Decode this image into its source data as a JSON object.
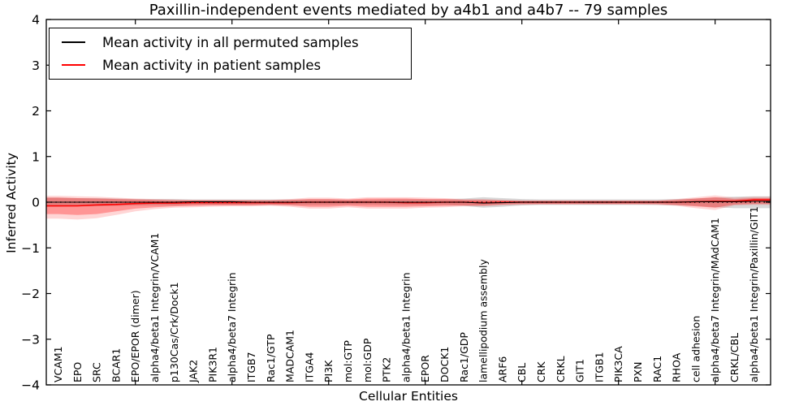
{
  "chart_data": {
    "type": "line",
    "title": "Paxillin-independent events mediated by a4b1 and a4b7 -- 79 samples",
    "xlabel": "Cellular Entities",
    "ylabel": "Inferred Activity",
    "ylim": [
      -4,
      4
    ],
    "yticks": [
      -4,
      -3,
      -2,
      -1,
      0,
      1,
      2,
      3,
      4
    ],
    "grid": false,
    "legend_position": "upper left",
    "zero_line_style": "dotted",
    "sparse_tick_indices": [
      4,
      9,
      14,
      19,
      24,
      29,
      34
    ],
    "categories": [
      "VCAM1",
      "EPO",
      "SRC",
      "BCAR1",
      "EPO/EPOR (dimer)",
      "alpha4/beta1 Integrin/VCAM1",
      "p130Cas/Crk/Dock1",
      "JAK2",
      "PIK3R1",
      "alpha4/beta7 Integrin",
      "ITGB7",
      "Rac1/GTP",
      "MADCAM1",
      "ITGA4",
      "PI3K",
      "mol:GTP",
      "mol:GDP",
      "PTK2",
      "alpha4/beta1 Integrin",
      "EPOR",
      "DOCK1",
      "Rac1/GDP",
      "lamellipodium assembly",
      "ARF6",
      "CBL",
      "CRK",
      "CRKL",
      "GIT1",
      "ITGB1",
      "PIK3CA",
      "PXN",
      "RAC1",
      "RHOA",
      "cell adhesion",
      "alpha4/beta7 Integrin/MAdCAM1",
      "CRKL/CBL",
      "alpha4/beta1 Integrin/Paxillin/GIT1"
    ],
    "series": [
      {
        "name": "Mean activity in all permuted samples",
        "color": "#000000",
        "values": [
          0,
          0,
          0,
          0,
          0,
          0,
          0,
          0.01,
          0.01,
          0.01,
          0,
          0,
          0,
          0,
          0,
          0,
          0,
          0,
          0,
          0,
          0,
          0,
          -0.02,
          -0.01,
          0,
          0,
          0,
          0,
          0,
          0,
          0,
          0,
          0,
          0.01,
          0.01,
          0.01,
          0.02
        ],
        "band": {
          "upper": [
            0.1,
            0.09,
            0.09,
            0.08,
            0.07,
            0.07,
            0.07,
            0.06,
            0.06,
            0.06,
            0.06,
            0.06,
            0.06,
            0.06,
            0.06,
            0.05,
            0.05,
            0.06,
            0.06,
            0.06,
            0.06,
            0.08,
            0.11,
            0.09,
            0.07,
            0.06,
            0.06,
            0.06,
            0.06,
            0.06,
            0.06,
            0.06,
            0.07,
            0.08,
            0.1,
            0.12,
            0.13
          ],
          "lower": [
            -0.1,
            -0.09,
            -0.09,
            -0.08,
            -0.07,
            -0.07,
            -0.07,
            -0.06,
            -0.06,
            -0.06,
            -0.06,
            -0.06,
            -0.06,
            -0.06,
            -0.06,
            -0.05,
            -0.05,
            -0.06,
            -0.06,
            -0.06,
            -0.06,
            -0.08,
            -0.12,
            -0.1,
            -0.07,
            -0.06,
            -0.06,
            -0.06,
            -0.06,
            -0.06,
            -0.06,
            -0.06,
            -0.07,
            -0.08,
            -0.11,
            -0.13,
            -0.13
          ],
          "color": "#999999",
          "opacity": 0.38
        }
      },
      {
        "name": "Mean activity in patient samples",
        "color": "#ff0000",
        "values": [
          -0.08,
          -0.08,
          -0.06,
          -0.05,
          -0.03,
          -0.02,
          -0.02,
          -0.01,
          -0.01,
          -0.01,
          -0.01,
          -0.01,
          -0.01,
          0,
          0,
          0,
          0,
          0,
          -0.01,
          -0.01,
          0,
          0,
          -0.01,
          0,
          0,
          0,
          0,
          0,
          0,
          0,
          0,
          0,
          0,
          0.01,
          0.02,
          0.02,
          0.05
        ],
        "band": {
          "upper": [
            0.1,
            0.09,
            0.08,
            0.07,
            0.06,
            0.05,
            0.04,
            0.04,
            0.04,
            0.04,
            0.04,
            0.04,
            0.05,
            0.07,
            0.07,
            0.06,
            0.08,
            0.08,
            0.08,
            0.07,
            0.07,
            0.05,
            0.05,
            0.04,
            0.03,
            0.03,
            0.03,
            0.03,
            0.03,
            0.03,
            0.03,
            0.03,
            0.05,
            0.08,
            0.11,
            0.07,
            0.09
          ],
          "lower": [
            -0.26,
            -0.28,
            -0.26,
            -0.2,
            -0.14,
            -0.11,
            -0.09,
            -0.08,
            -0.07,
            -0.07,
            -0.07,
            -0.06,
            -0.07,
            -0.1,
            -0.1,
            -0.08,
            -0.1,
            -0.1,
            -0.1,
            -0.09,
            -0.08,
            -0.07,
            -0.07,
            -0.05,
            -0.04,
            -0.04,
            -0.04,
            -0.04,
            -0.04,
            -0.04,
            -0.04,
            -0.04,
            -0.06,
            -0.09,
            -0.12,
            -0.05,
            -0.04
          ],
          "color": "#ff0000",
          "opacity": 0.3
        },
        "band_outer": {
          "upper": [
            0.14,
            0.13,
            0.12,
            0.1,
            0.08,
            0.07,
            0.06,
            0.05,
            0.05,
            0.05,
            0.05,
            0.05,
            0.07,
            0.1,
            0.1,
            0.08,
            0.11,
            0.11,
            0.11,
            0.1,
            0.09,
            0.07,
            0.07,
            0.05,
            0.04,
            0.04,
            0.04,
            0.04,
            0.04,
            0.04,
            0.04,
            0.04,
            0.07,
            0.11,
            0.15,
            0.1,
            0.12
          ],
          "lower": [
            -0.36,
            -0.38,
            -0.35,
            -0.28,
            -0.2,
            -0.15,
            -0.12,
            -0.11,
            -0.1,
            -0.09,
            -0.09,
            -0.08,
            -0.1,
            -0.14,
            -0.14,
            -0.11,
            -0.14,
            -0.14,
            -0.14,
            -0.12,
            -0.11,
            -0.09,
            -0.09,
            -0.07,
            -0.06,
            -0.05,
            -0.05,
            -0.05,
            -0.05,
            -0.05,
            -0.05,
            -0.06,
            -0.08,
            -0.13,
            -0.17,
            -0.07,
            -0.06
          ],
          "color": "#ff0000",
          "opacity": 0.16
        }
      }
    ]
  }
}
